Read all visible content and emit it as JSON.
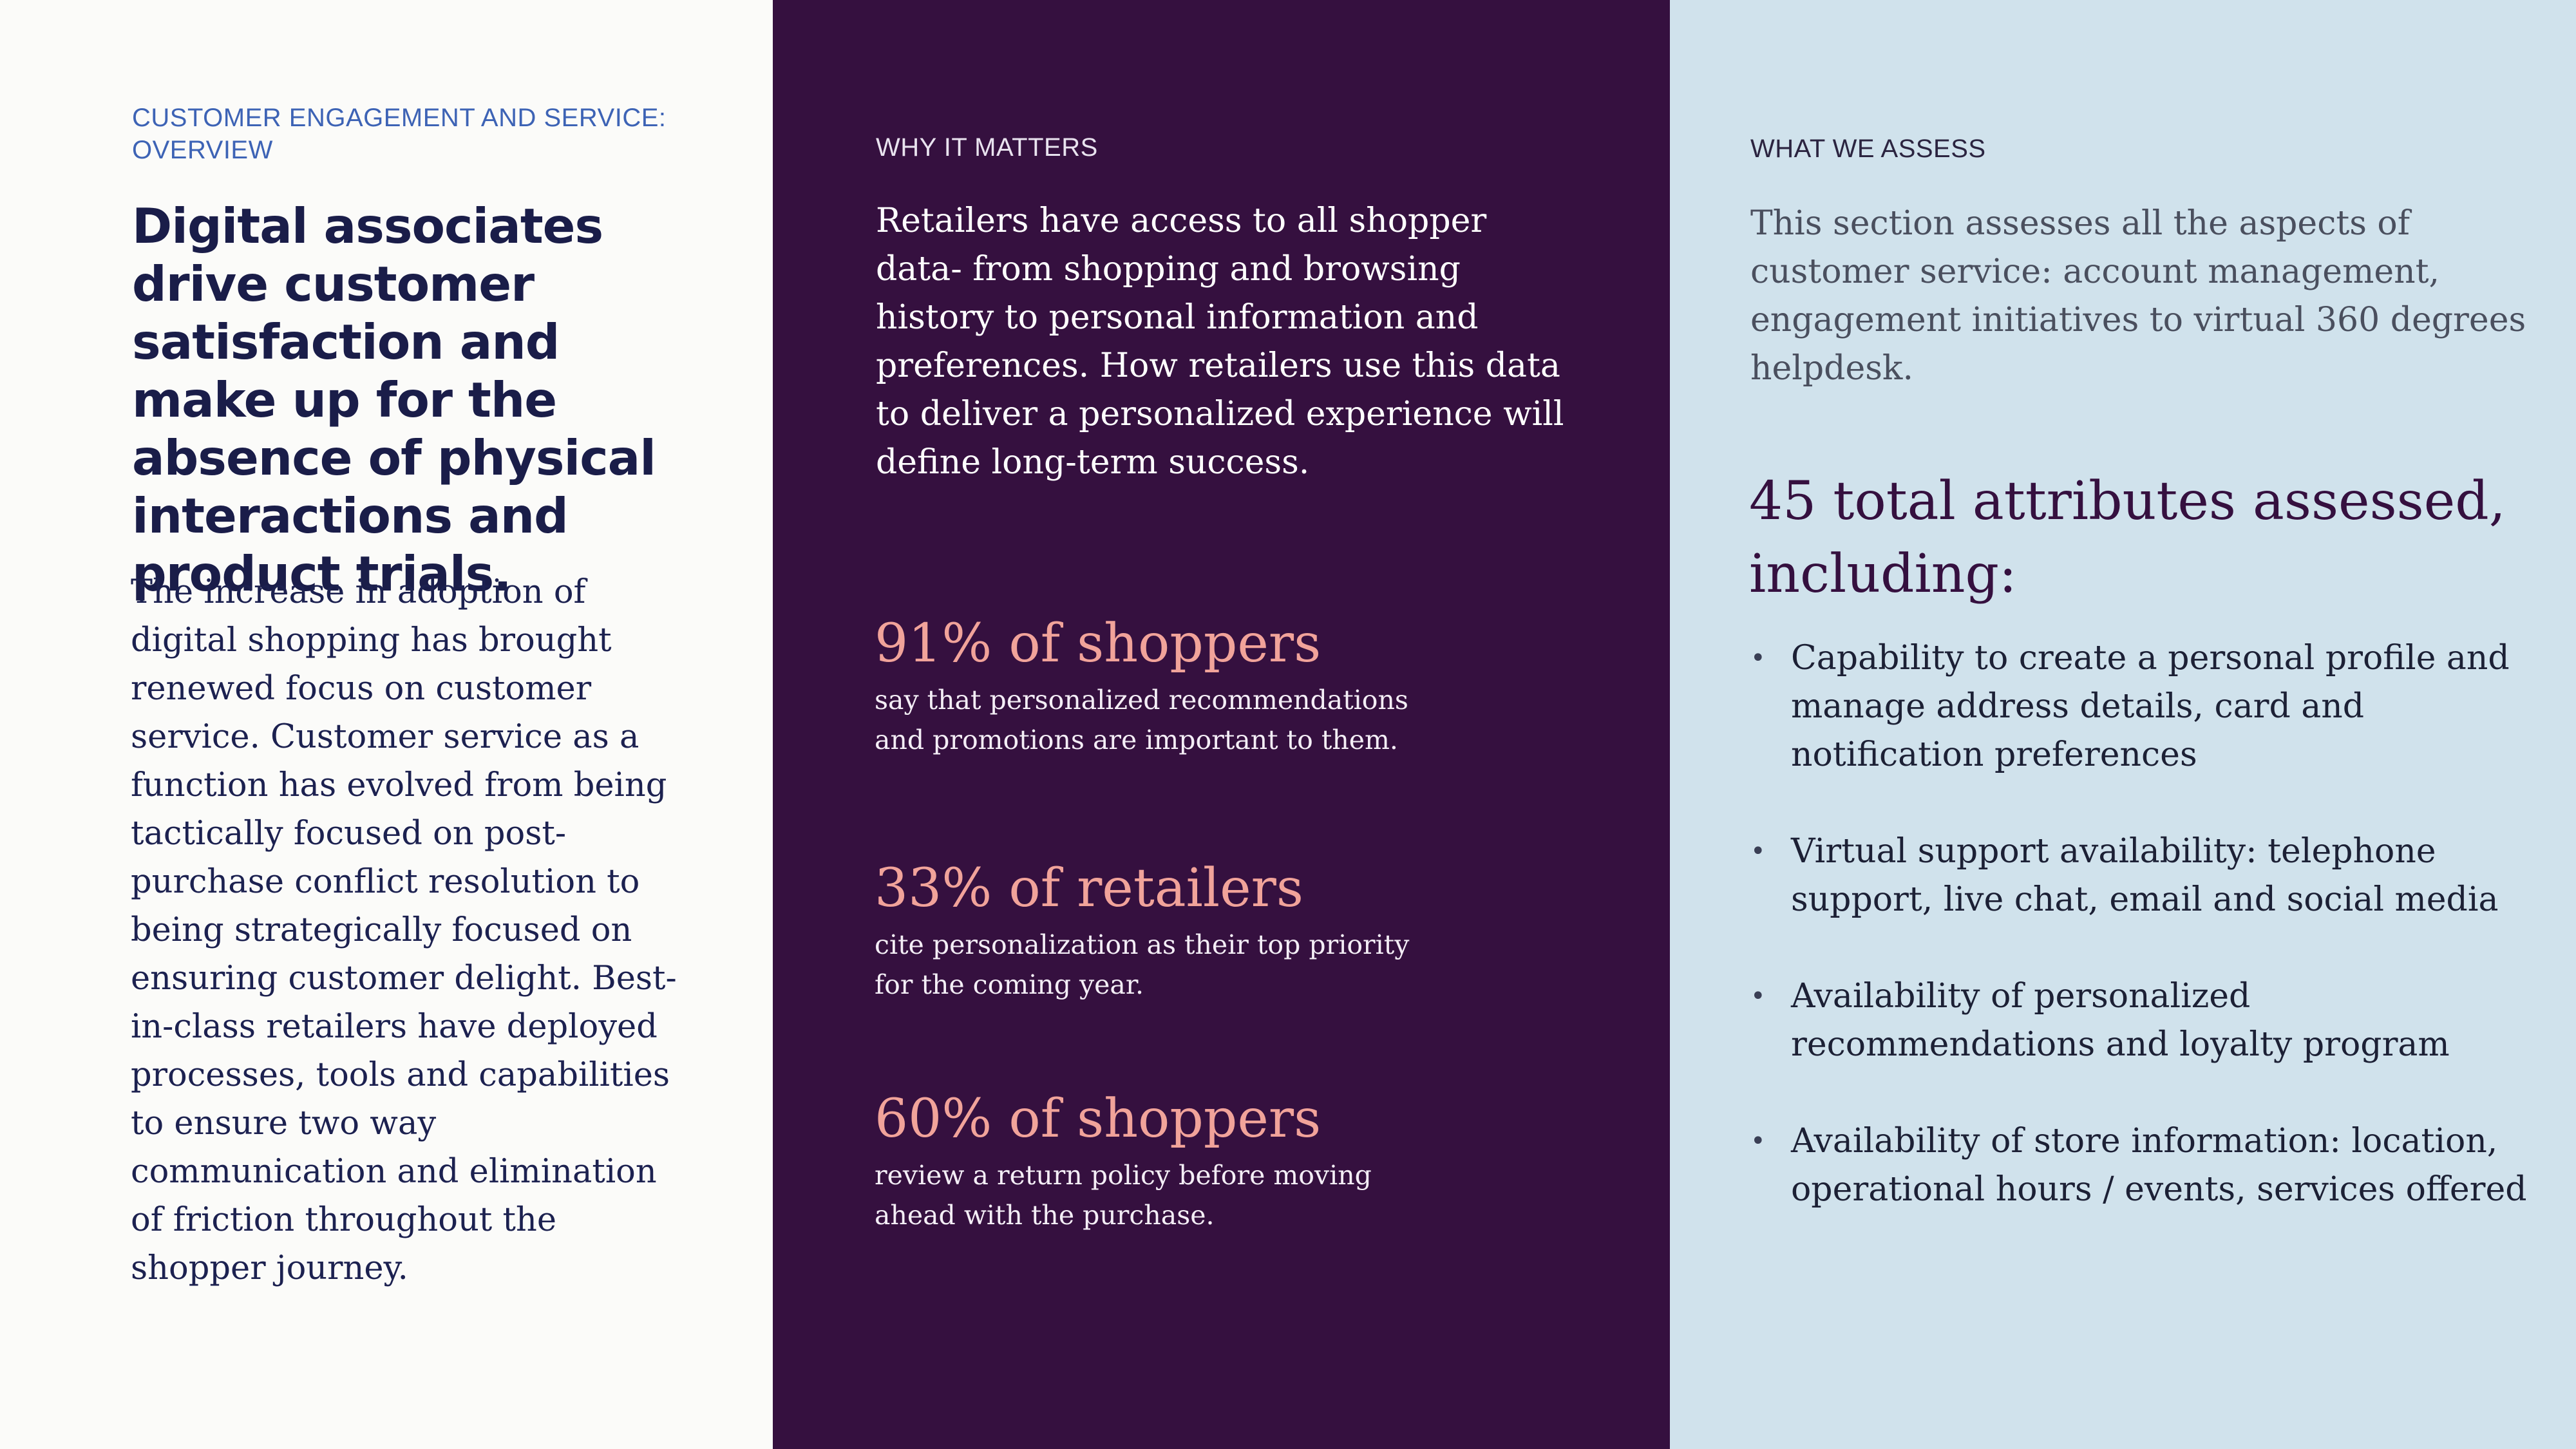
{
  "left": {
    "eyebrow": "CUSTOMER ENGAGEMENT AND SERVICE: OVERVIEW",
    "headline": "Digital associates drive customer satisfaction and make up for the absence of physical interactions and product trials.",
    "body": "The increase in adoption of digital shopping has brought renewed focus on customer service. Customer service as a function has evolved from being tactically focused on post-purchase conflict resolution to being strategically focused on ensuring customer delight. Best-in-class retailers have deployed processes, tools and capabilities to ensure two way communication and elimination of friction throughout the shopper journey."
  },
  "middle": {
    "eyebrow": "WHY IT MATTERS",
    "intro": "Retailers have access to all shopper data- from shopping and browsing history to personal information and preferences. How retailers use this data to deliver a personalized experience will define long-term success.",
    "stats": [
      {
        "big": "91% of shoppers",
        "small": "say that personalized recommendations and promotions are important to them."
      },
      {
        "big": "33% of retailers",
        "small": "cite personalization as their top priority for the coming year."
      },
      {
        "big": "60% of shoppers",
        "small": "review a return policy before moving ahead with  the purchase."
      }
    ]
  },
  "right": {
    "eyebrow": "WHAT WE ASSESS",
    "intro": "This section assesses all the aspects of customer service: account management, engagement initiatives to virtual 360 degrees helpdesk.",
    "attributes_heading": "45 total attributes assessed, including:",
    "bullet_glyph": "•",
    "attributes": [
      "Capability to create a personal profile and manage address details, card and notification preferences",
      "Virtual support availability: telephone support, live chat, email and social media",
      "Availability of personalized recommendations and loyalty program",
      "Availability of store information: location, operational hours / events, services offered"
    ]
  }
}
